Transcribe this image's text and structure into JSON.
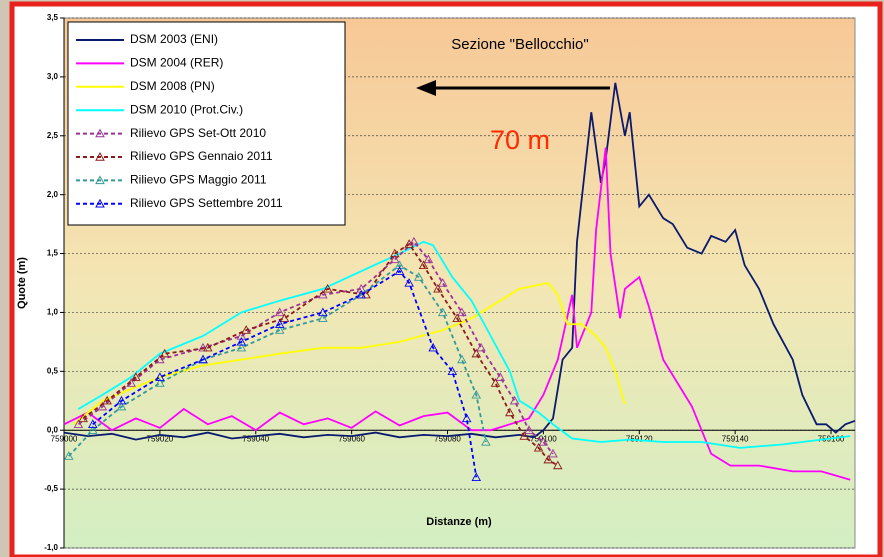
{
  "chart_data": {
    "type": "line",
    "title": "Sezione \"Bellocchio\"",
    "annotation": "70 m",
    "x_label": "Distanze (m)",
    "y_label": "Quote (m)",
    "xlim": [
      759000,
      759165
    ],
    "xticks": [
      759000,
      759020,
      759040,
      759060,
      759080,
      759100,
      759120,
      759140,
      759160
    ],
    "ylim": [
      -1.0,
      3.5
    ],
    "yticks": [
      {
        "value": -1.0,
        "label": "-1,0"
      },
      {
        "value": -0.5,
        "label": "-0,5"
      },
      {
        "value": 0,
        "label": "0,0"
      },
      {
        "value": 0.5,
        "label": "0,5"
      },
      {
        "value": 1.0,
        "label": "1,0"
      },
      {
        "value": 1.5,
        "label": "1,5"
      },
      {
        "value": 2.0,
        "label": "2,0"
      },
      {
        "value": 2.5,
        "label": "2,5"
      },
      {
        "value": 3.0,
        "label": "3,0"
      },
      {
        "value": 3.5,
        "label": "3,5"
      }
    ],
    "grid": true,
    "legend": "upper left",
    "series": [
      {
        "name": "DSM 2003 (ENI)",
        "color": "#0a1a6e",
        "dash": false,
        "marker": "none",
        "x": [
          759000,
          759005,
          759010,
          759015,
          759020,
          759025,
          759030,
          759035,
          759040,
          759045,
          759050,
          759055,
          759060,
          759065,
          759070,
          759075,
          759080,
          759085,
          759090,
          759095,
          759098,
          759100,
          759102,
          759104,
          759106,
          759107,
          759110,
          759112,
          759113,
          759115,
          759117,
          759118,
          759120,
          759122,
          759125,
          759127,
          759130,
          759133,
          759135,
          759138,
          759140,
          759142,
          759145,
          759148,
          759152,
          759154,
          759157,
          759159,
          759161,
          759163,
          759165
        ],
        "values": [
          -0.02,
          -0.05,
          -0.03,
          -0.08,
          -0.04,
          -0.06,
          -0.02,
          -0.07,
          -0.05,
          -0.03,
          -0.06,
          -0.04,
          -0.05,
          -0.02,
          -0.06,
          -0.04,
          -0.05,
          -0.03,
          -0.06,
          -0.04,
          -0.06,
          0.0,
          0.1,
          0.6,
          0.7,
          1.6,
          2.7,
          2.1,
          2.3,
          2.95,
          2.5,
          2.7,
          1.9,
          2.0,
          1.8,
          1.75,
          1.55,
          1.5,
          1.65,
          1.6,
          1.7,
          1.4,
          1.2,
          0.9,
          0.6,
          0.3,
          0.05,
          0.05,
          -0.02,
          0.05,
          0.08
        ]
      },
      {
        "name": "DSM 2004 (RER)",
        "color": "#ff00ff",
        "dash": false,
        "marker": "none",
        "x": [
          759000,
          759005,
          759010,
          759015,
          759020,
          759025,
          759030,
          759035,
          759040,
          759045,
          759050,
          759055,
          759060,
          759065,
          759070,
          759075,
          759080,
          759085,
          759089,
          759093,
          759097,
          759100,
          759103,
          759106,
          759107,
          759110,
          759111,
          759113,
          759114,
          759116,
          759117,
          759120,
          759122,
          759125,
          759128,
          759131,
          759133,
          759135,
          759139,
          759145,
          759152,
          759158,
          759164
        ],
        "values": [
          0.05,
          0.15,
          0.0,
          0.1,
          0.02,
          0.18,
          0.05,
          0.12,
          0.0,
          0.15,
          0.05,
          0.1,
          0.02,
          0.16,
          0.04,
          0.12,
          0.15,
          0.0,
          0.0,
          0.05,
          0.1,
          0.3,
          0.6,
          1.15,
          0.7,
          1.0,
          1.7,
          2.4,
          1.5,
          0.95,
          1.2,
          1.3,
          1.05,
          0.6,
          0.4,
          0.2,
          0.0,
          -0.2,
          -0.3,
          -0.3,
          -0.35,
          -0.35,
          -0.42
        ]
      },
      {
        "name": "DSM 2008 (PN)",
        "color": "#ffff00",
        "dash": false,
        "marker": "none",
        "x": [
          759002,
          759008,
          759014,
          759020,
          759029,
          759037,
          759045,
          759054,
          759062,
          759070,
          759079,
          759085,
          759091,
          759095,
          759101,
          759103,
          759105,
          759108,
          759111,
          759113,
          759115,
          759117
        ],
        "values": [
          0.05,
          0.25,
          0.35,
          0.45,
          0.55,
          0.6,
          0.65,
          0.7,
          0.7,
          0.75,
          0.85,
          0.95,
          1.1,
          1.2,
          1.25,
          1.15,
          0.9,
          0.9,
          0.8,
          0.7,
          0.5,
          0.22
        ]
      },
      {
        "name": "DSM 2010 (Prot.Civ.)",
        "color": "#00ffff",
        "dash": false,
        "marker": "none",
        "x": [
          759003,
          759008,
          759014,
          759020,
          759029,
          759037,
          759045,
          759054,
          759062,
          759070,
          759075,
          759077,
          759081,
          759085,
          759089,
          759093,
          759095,
          759099,
          759102,
          759106,
          759112,
          759118,
          759125,
          759133,
          759141,
          759150,
          759158,
          759164
        ],
        "values": [
          0.18,
          0.3,
          0.45,
          0.65,
          0.8,
          1.0,
          1.1,
          1.2,
          1.35,
          1.5,
          1.6,
          1.57,
          1.3,
          1.1,
          0.8,
          0.5,
          0.25,
          0.15,
          0.05,
          -0.07,
          -0.1,
          -0.08,
          -0.1,
          -0.1,
          -0.15,
          -0.12,
          -0.08,
          -0.05
        ]
      },
      {
        "name": "Rilievo GPS Set-Ott 2010",
        "color": "#993399",
        "dash": true,
        "marker": "triangle",
        "x": [
          759003,
          759008,
          759014,
          759020,
          759029,
          759037,
          759045,
          759054,
          759062,
          759069,
          759073,
          759076,
          759079,
          759083,
          759087,
          759091,
          759094,
          759097,
          759100,
          759102
        ],
        "values": [
          0.05,
          0.2,
          0.4,
          0.6,
          0.7,
          0.8,
          1.0,
          1.15,
          1.2,
          1.45,
          1.6,
          1.45,
          1.25,
          1.0,
          0.7,
          0.45,
          0.25,
          0.0,
          -0.1,
          -0.2
        ]
      },
      {
        "name": "Rilievo GPS Gennaio 2011",
        "color": "#8b1a1a",
        "dash": true,
        "marker": "triangle",
        "x": [
          759004,
          759009,
          759015,
          759021,
          759030,
          759038,
          759046,
          759055,
          759063,
          759069,
          759072,
          759075,
          759078,
          759082,
          759086,
          759090,
          759093,
          759096,
          759099,
          759101,
          759103
        ],
        "values": [
          0.1,
          0.25,
          0.45,
          0.65,
          0.7,
          0.85,
          0.95,
          1.2,
          1.15,
          1.5,
          1.58,
          1.4,
          1.2,
          0.95,
          0.65,
          0.4,
          0.15,
          -0.05,
          -0.15,
          -0.25,
          -0.3
        ]
      },
      {
        "name": "Rilievo GPS Maggio 2011",
        "color": "#339999",
        "dash": true,
        "marker": "triangle",
        "x": [
          759001,
          759006,
          759012,
          759020,
          759029,
          759037,
          759045,
          759054,
          759062,
          759070,
          759074,
          759079,
          759083,
          759086,
          759088
        ],
        "values": [
          -0.22,
          0.0,
          0.2,
          0.4,
          0.6,
          0.7,
          0.85,
          0.95,
          1.15,
          1.4,
          1.3,
          1.0,
          0.6,
          0.3,
          -0.1
        ]
      },
      {
        "name": "Rilievo GPS Settembre 2011",
        "color": "#0000ff",
        "dash": true,
        "marker": "triangle",
        "x": [
          759006,
          759012,
          759020,
          759029,
          759037,
          759045,
          759054,
          759062,
          759070,
          759072,
          759077,
          759081,
          759084,
          759086
        ],
        "values": [
          0.05,
          0.25,
          0.45,
          0.6,
          0.75,
          0.9,
          1.0,
          1.15,
          1.35,
          1.25,
          0.7,
          0.5,
          0.1,
          -0.4
        ]
      }
    ]
  }
}
